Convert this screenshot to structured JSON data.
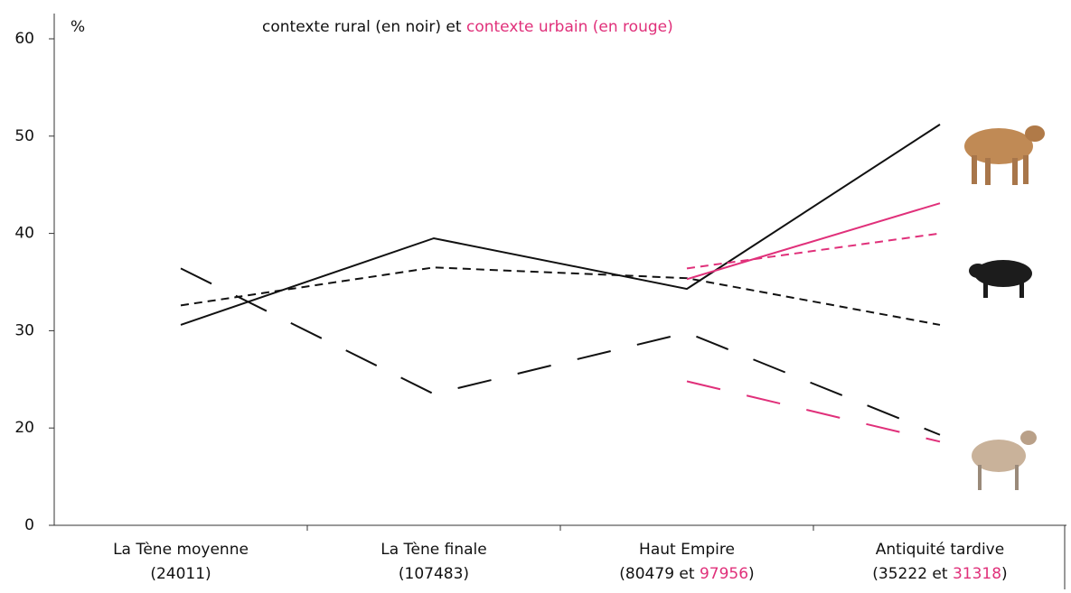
{
  "chart_data": {
    "type": "line",
    "title_parts": [
      {
        "text": "contexte rural (en noir) et ",
        "color": "#111111"
      },
      {
        "text": "contexte urbain (en rouge)",
        "color": "#e0307a"
      }
    ],
    "y_label": "%",
    "categories": [
      "La Tène moyenne",
      "La Tène finale",
      "Haut Empire",
      "Antiquité tardive"
    ],
    "category_notes": [
      [
        {
          "text": "(24011)",
          "color": "#111111"
        }
      ],
      [
        {
          "text": "(107483)",
          "color": "#111111"
        }
      ],
      [
        {
          "text": "(80479 et ",
          "color": "#111111"
        },
        {
          "text": "97956",
          "color": "#e0307a"
        },
        {
          "text": ")",
          "color": "#111111"
        }
      ],
      [
        {
          "text": "(35222 et ",
          "color": "#111111"
        },
        {
          "text": "31318",
          "color": "#e0307a"
        },
        {
          "text": ")",
          "color": "#111111"
        }
      ]
    ],
    "ylim": [
      0,
      60
    ],
    "yticks": [
      0,
      20,
      30,
      40,
      50,
      60
    ],
    "series": [
      {
        "color": "#111111",
        "dash": "solid",
        "values": [
          30.6,
          39.5,
          34.3,
          51.2
        ]
      },
      {
        "color": "#111111",
        "dash": "short",
        "values": [
          32.6,
          36.5,
          35.4,
          30.6
        ]
      },
      {
        "color": "#111111",
        "dash": "long",
        "values": [
          36.4,
          23.5,
          29.8,
          18.6
        ]
      },
      {
        "color": "#e0307a",
        "dash": "solid",
        "values": [
          null,
          null,
          35.3,
          43.1
        ]
      },
      {
        "color": "#e0307a",
        "dash": "short",
        "values": [
          null,
          null,
          36.4,
          40.0
        ]
      },
      {
        "color": "#e0307a",
        "dash": "long",
        "values": [
          null,
          null,
          24.8,
          17.2
        ]
      }
    ]
  }
}
